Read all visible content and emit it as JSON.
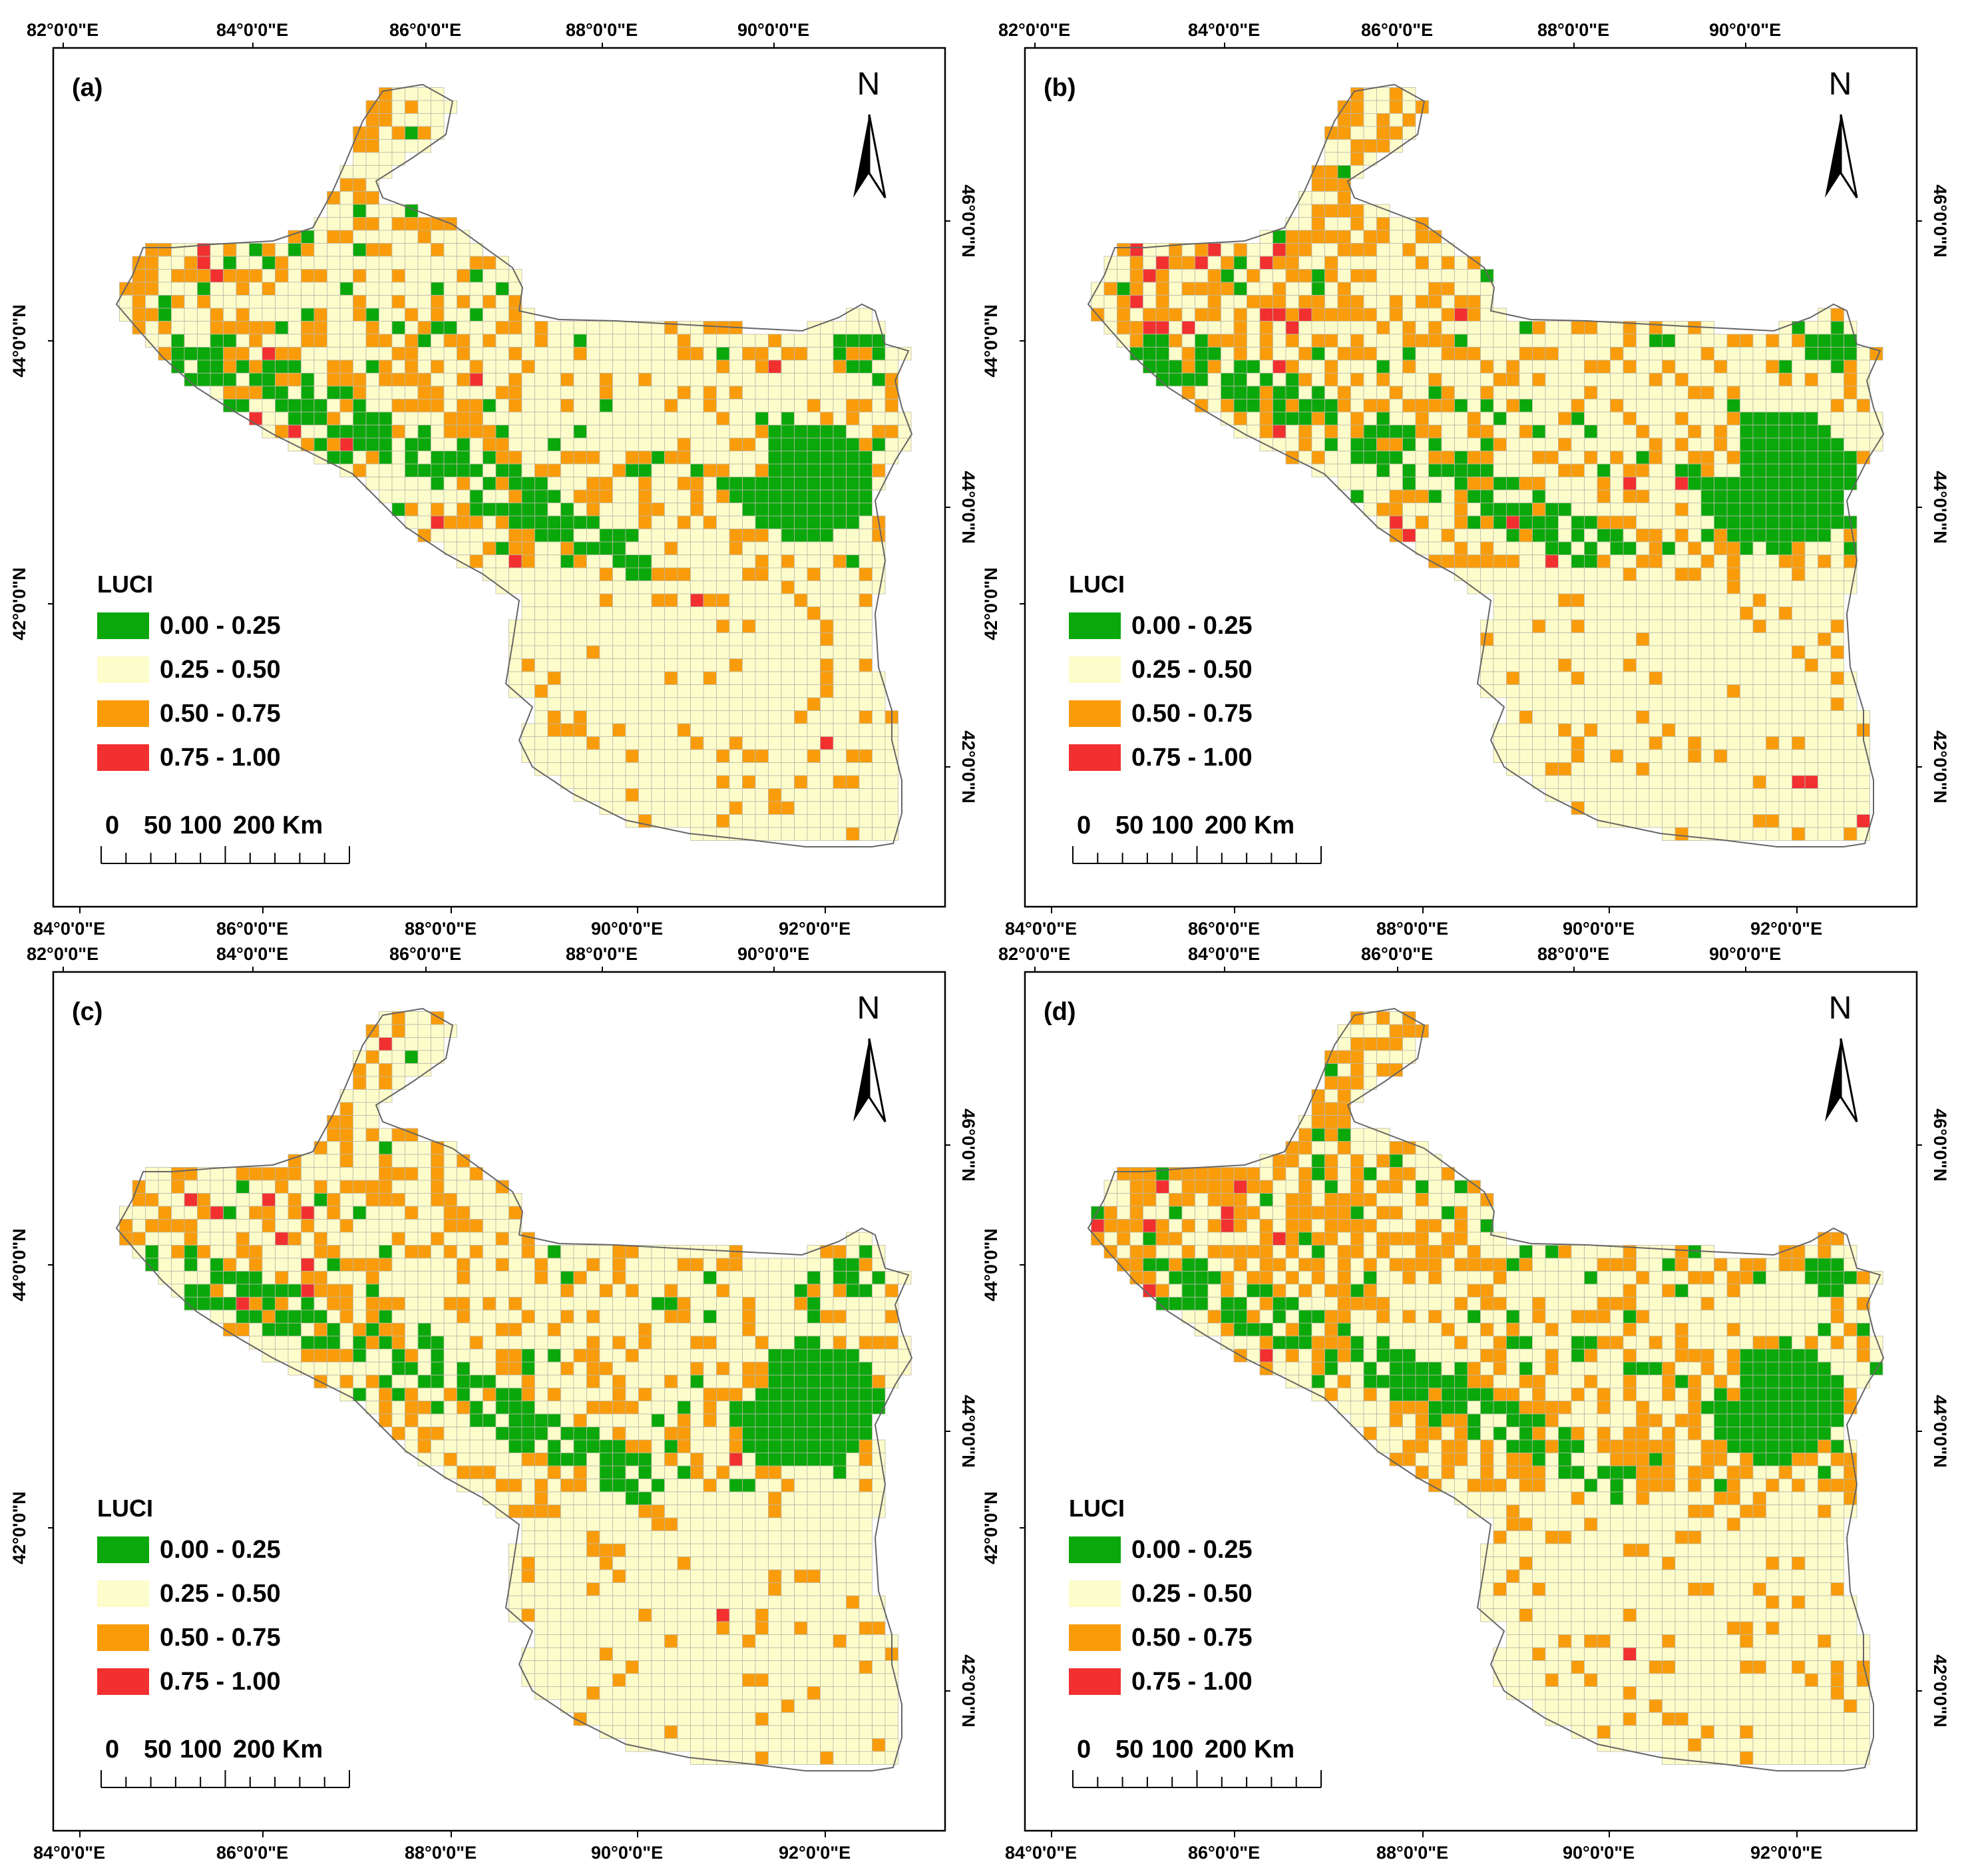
{
  "figure": {
    "panels": [
      {
        "label": "(a)",
        "seed": 11,
        "green_core": 1.0,
        "orange_level": 0.3,
        "red_level": 0.012
      },
      {
        "label": "(b)",
        "seed": 23,
        "green_core": 1.15,
        "orange_level": 0.32,
        "red_level": 0.014
      },
      {
        "label": "(c)",
        "seed": 37,
        "green_core": 1.05,
        "orange_level": 0.27,
        "red_level": 0.012
      },
      {
        "label": "(d)",
        "seed": 53,
        "green_core": 0.95,
        "orange_level": 0.38,
        "red_level": 0.012
      }
    ],
    "north_label": "N",
    "lon_top_labels": [
      "82°0'0\"E",
      "84°0'0\"E",
      "86°0'0\"E",
      "88°0'0\"E",
      "90°0'0\"E"
    ],
    "lon_bottom_labels": [
      "84°0'0\"E",
      "86°0'0\"E",
      "88°0'0\"E",
      "90°0'0\"E",
      "92°0'0\"E"
    ],
    "lat_left_labels": [
      "44°0'0\"N",
      "42°0'0\"N"
    ],
    "lat_right_labels": [
      "46°0'0\"N",
      "44°0'0\"N",
      "42°0'0\"N"
    ],
    "legend": {
      "title": "LUCI",
      "items": [
        {
          "label": "0.00 - 0.25",
          "color": "#0aa80a"
        },
        {
          "label": "0.25 - 0.50",
          "color": "#fdfccb"
        },
        {
          "label": "0.50 - 0.75",
          "color": "#fa9c0a"
        },
        {
          "label": "0.75 - 1.00",
          "color": "#f23030"
        }
      ]
    },
    "scale_bar": {
      "labels": [
        "0",
        "50",
        "100",
        "200 Km"
      ]
    },
    "colors": {
      "grid_line": "#b9b9a8",
      "outline": "#666666",
      "frame": "#000000"
    }
  }
}
